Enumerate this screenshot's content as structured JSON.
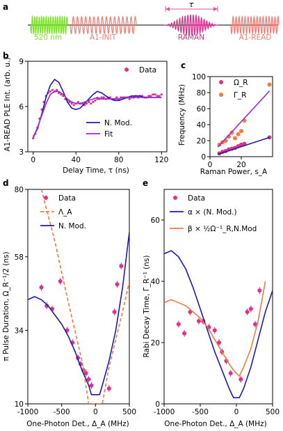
{
  "figure": {
    "panels": [
      "a",
      "b",
      "c",
      "d",
      "e"
    ]
  },
  "pulse_sequence": {
    "tau_label": "τ",
    "labels": [
      "520 nm",
      "A1-INIT",
      "RAMAN",
      "A1-READ"
    ],
    "colors": {
      "laser520": "#76e81e",
      "init_read": "#f08078",
      "raman": "#e0308c",
      "arrow": "#e050a0"
    }
  },
  "chart_data": [
    {
      "type": "line",
      "panel": "b",
      "xlabel": "Delay Time, τ (ns)",
      "ylabel": "A1-READ PLE Int. (arb. u.)",
      "xlim": [
        -5,
        125
      ],
      "ylim": [
        3,
        9
      ],
      "xticks": [
        0,
        40,
        80,
        120
      ],
      "yticks": [
        3,
        6,
        9
      ],
      "legend": [
        "Data",
        "N. Mod.",
        "Fit"
      ],
      "series": [
        {
          "name": "Data",
          "kind": "scatter",
          "color": "#e0308c",
          "x": [
            0,
            2,
            4,
            6,
            8,
            10,
            12,
            14,
            16,
            18,
            20,
            22,
            24,
            26,
            28,
            30,
            32,
            34,
            36,
            38,
            40,
            42,
            44,
            46,
            48,
            50,
            52,
            54,
            56,
            58,
            60,
            62,
            64,
            66,
            68,
            70,
            72,
            74,
            76,
            78,
            80,
            82,
            84,
            86,
            88,
            90,
            92,
            94,
            96,
            98,
            100,
            102,
            104,
            106,
            108,
            110,
            112,
            114,
            116,
            118,
            120
          ],
          "y": [
            3.9,
            4.2,
            4.6,
            5.2,
            5.8,
            6.3,
            6.7,
            6.9,
            7.0,
            7.1,
            7.0,
            7.1,
            6.9,
            6.8,
            6.7,
            6.5,
            6.4,
            6.3,
            6.2,
            6.1,
            6.2,
            6.3,
            6.2,
            6.2,
            6.1,
            6.2,
            6.3,
            6.2,
            6.3,
            6.4,
            6.5,
            6.5,
            6.6,
            6.6,
            6.5,
            6.6,
            6.6,
            6.5,
            6.5,
            6.6,
            6.5,
            6.6,
            6.6,
            6.6,
            6.6,
            6.5,
            6.6,
            6.6,
            6.7,
            6.6,
            6.7,
            6.7,
            6.6,
            6.6,
            6.7,
            6.7,
            6.8,
            6.8,
            6.7,
            6.7,
            6.8
          ]
        },
        {
          "name": "N. Mod.",
          "kind": "line",
          "color": "#1a1ab4",
          "x": [
            0,
            4,
            8,
            12,
            16,
            20,
            24,
            28,
            32,
            36,
            40,
            44,
            48,
            52,
            56,
            60,
            64,
            68,
            72,
            76,
            80,
            84,
            88,
            92,
            96,
            100,
            104,
            108,
            112,
            116,
            120
          ],
          "y": [
            4.0,
            4.5,
            5.5,
            6.6,
            7.4,
            7.8,
            7.6,
            7.0,
            6.3,
            5.9,
            5.8,
            5.9,
            6.2,
            6.5,
            6.8,
            7.0,
            6.9,
            6.7,
            6.5,
            6.4,
            6.4,
            6.5,
            6.6,
            6.7,
            6.7,
            6.7,
            6.6,
            6.6,
            6.6,
            6.6,
            6.6
          ]
        },
        {
          "name": "Fit",
          "kind": "line",
          "color": "#9a2ad4",
          "x": [
            0,
            4,
            8,
            12,
            16,
            20,
            24,
            28,
            32,
            36,
            40,
            44,
            48,
            52,
            56,
            60,
            64,
            68,
            72,
            76,
            80,
            84,
            88,
            92,
            96,
            100,
            104,
            108,
            112,
            116,
            120
          ],
          "y": [
            3.9,
            4.6,
            5.4,
            6.2,
            6.8,
            7.0,
            7.0,
            6.8,
            6.5,
            6.3,
            6.2,
            6.2,
            6.3,
            6.4,
            6.5,
            6.6,
            6.5,
            6.5,
            6.5,
            6.5,
            6.5,
            6.6,
            6.6,
            6.6,
            6.6,
            6.6,
            6.6,
            6.6,
            6.6,
            6.6,
            6.6
          ]
        }
      ]
    },
    {
      "type": "scatter",
      "panel": "c",
      "xlabel": "Raman Power, s_A",
      "ylabel": "Frequency (MHz)",
      "xlim": [
        0,
        40
      ],
      "ylim": [
        0,
        100
      ],
      "xticks": [
        0,
        20
      ],
      "yticks": [
        0,
        20,
        40,
        60,
        80,
        100
      ],
      "legend": [
        "Ω_R",
        "Γ_R"
      ],
      "series": [
        {
          "name": "Ω_R",
          "color": "#e0308c",
          "x": [
            6,
            8,
            10,
            12,
            14,
            16,
            18,
            20,
            22,
            38
          ],
          "y": [
            4,
            6,
            7,
            9,
            10,
            11,
            13,
            15,
            16,
            24
          ]
        },
        {
          "name": "Γ_R",
          "color": "#f07a40",
          "x": [
            6,
            8,
            10,
            12,
            14,
            16,
            18,
            20,
            22,
            38
          ],
          "y": [
            15,
            18,
            20,
            25,
            30,
            23,
            28,
            32,
            45,
            90
          ]
        },
        {
          "name": "Ω_R fit",
          "color": "#1a1ab4",
          "x": [
            5,
            38
          ],
          "y": [
            3,
            24
          ]
        },
        {
          "name": "Γ_R fit",
          "color": "#9a2ad4",
          "x": [
            5,
            38
          ],
          "y": [
            12,
            82
          ]
        }
      ]
    },
    {
      "type": "scatter",
      "panel": "d",
      "xlabel": "One-Photon Det., Δ_A (MHz)",
      "ylabel": "π Pulse Duration, Ω_R⁻¹/2 (ns)",
      "xlim": [
        -1000,
        500
      ],
      "ylim": [
        10,
        80
      ],
      "xticks": [
        -1000,
        -500,
        0,
        500
      ],
      "yticks": [
        10,
        34,
        58,
        80
      ],
      "legend": [
        "Data",
        "Λ_A",
        "N. Mod."
      ],
      "series": [
        {
          "name": "Data",
          "color": "#e0308c",
          "x": [
            -800,
            -720,
            -640,
            -520,
            -420,
            -340,
            -260,
            -220,
            -180,
            -140,
            -100,
            -60,
            200,
            280,
            320,
            380
          ],
          "y": [
            48,
            42,
            41,
            50,
            34,
            30,
            25,
            23,
            21,
            20,
            18,
            16,
            15,
            40,
            49,
            55
          ]
        },
        {
          "name": "Λ_A",
          "kind": "dashed",
          "color": "#f07a40",
          "x": [
            -800,
            -600,
            -400,
            -200,
            -100,
            100,
            200,
            300,
            400,
            500
          ],
          "y": [
            80,
            63,
            43,
            24,
            10,
            10,
            22,
            31,
            40,
            50
          ]
        },
        {
          "name": "N. Mod.",
          "kind": "line",
          "color": "#1a1ab4",
          "x": [
            -1000,
            -900,
            -800,
            -700,
            -600,
            -500,
            -400,
            -300,
            -200,
            -100,
            -60,
            60,
            100,
            200,
            300,
            400,
            500
          ],
          "y": [
            44,
            45,
            44,
            42,
            39,
            36,
            32,
            27,
            21,
            16,
            13,
            13,
            16,
            24,
            34,
            48,
            66
          ]
        }
      ]
    },
    {
      "type": "scatter",
      "panel": "e",
      "xlabel": "One-Photon Det., Δ_A (MHz)",
      "ylabel": "Rabi Decay Time, Γ_R⁻¹ (ns)",
      "xlim": [
        -1000,
        500
      ],
      "ylim": [
        0,
        70
      ],
      "xticks": [
        -1000,
        -500,
        0,
        500
      ],
      "yticks": [
        0,
        20,
        40,
        60
      ],
      "legend": [
        "Data",
        "α × (N. Mod.)",
        "β × ½Ω⁻¹_R,N.Mod"
      ],
      "series": [
        {
          "name": "Data",
          "color": "#e0308c",
          "x": [
            -800,
            -720,
            -640,
            -520,
            -460,
            -380,
            -300,
            -240,
            -200,
            -140,
            -80,
            60,
            150,
            200,
            260,
            320
          ],
          "y": [
            26,
            23,
            30,
            27,
            27,
            25,
            24,
            20,
            17,
            14,
            10,
            8,
            30,
            31,
            26,
            37
          ]
        },
        {
          "name": "α × (N. Mod.)",
          "kind": "line",
          "color": "#1a1ab4",
          "x": [
            -1000,
            -900,
            -800,
            -700,
            -600,
            -500,
            -400,
            -300,
            -200,
            -100,
            -40,
            40,
            100,
            200,
            300,
            400,
            500
          ],
          "y": [
            49,
            50,
            48,
            44,
            38,
            31,
            24,
            17,
            11,
            5,
            2,
            2,
            5,
            12,
            21,
            30,
            37
          ]
        },
        {
          "name": "β × ½Ω⁻¹_R,N.Mod",
          "kind": "line",
          "color": "#f07a40",
          "x": [
            -1000,
            -900,
            -800,
            -700,
            -600,
            -500,
            -400,
            -300,
            -200,
            -100,
            -40,
            40,
            100,
            200,
            300,
            400
          ],
          "y": [
            33,
            34,
            33,
            32,
            30,
            28,
            25,
            21,
            17,
            13,
            11,
            9,
            12,
            18,
            27,
            40
          ]
        }
      ]
    }
  ]
}
